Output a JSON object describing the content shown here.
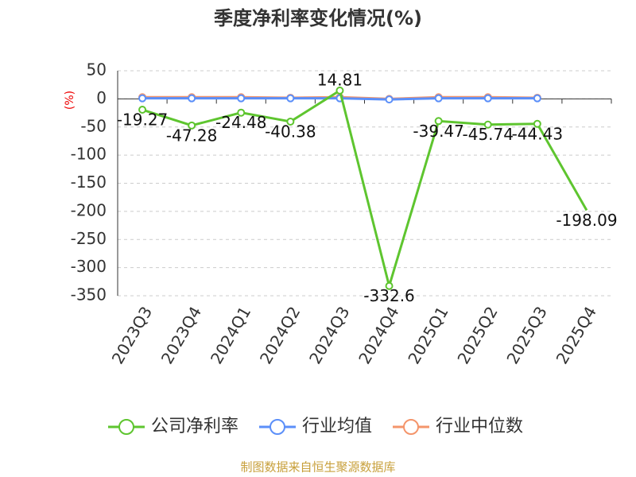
{
  "chart_data": {
    "type": "line",
    "title": "季度净利率变化情况(%)",
    "y_label": "(%)",
    "categories": [
      "2023Q3",
      "2023Q4",
      "2024Q1",
      "2024Q2",
      "2024Q3",
      "2024Q4",
      "2025Q1",
      "2025Q2",
      "2025Q3",
      "2025Q4"
    ],
    "series": [
      {
        "name": "公司净利率",
        "color": "#5ec52f",
        "values": [
          -19.27,
          -47.28,
          -24.48,
          -40.38,
          14.81,
          -332.6,
          -39.47,
          -45.74,
          -44.43,
          -198.09
        ],
        "show_labels": true
      },
      {
        "name": "行业均值",
        "color": "#5b8ff9",
        "values": [
          1,
          1,
          1,
          1,
          1,
          -1,
          1,
          1,
          1,
          null
        ]
      },
      {
        "name": "行业中位数",
        "color": "#f4956b",
        "values": [
          3,
          3,
          3,
          2,
          3,
          0,
          3,
          3,
          2,
          null
        ]
      }
    ],
    "ylim": [
      -350,
      50
    ],
    "yticks": [
      50,
      0,
      -50,
      -100,
      -150,
      -200,
      -250,
      -300,
      -350
    ],
    "grid": true,
    "source": "制图数据来自恒生聚源数据库"
  }
}
